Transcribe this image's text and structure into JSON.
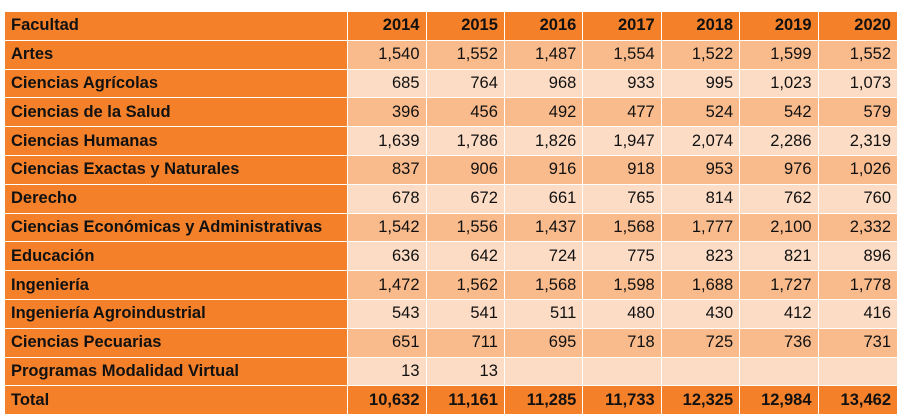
{
  "table": {
    "headers": [
      "Facultad",
      "2014",
      "2015",
      "2016",
      "2017",
      "2018",
      "2019",
      "2020"
    ],
    "rows": [
      {
        "name": "Artes",
        "values": [
          "1,540",
          "1,552",
          "1,487",
          "1,554",
          "1,522",
          "1,599",
          "1,552"
        ]
      },
      {
        "name": "Ciencias Agrícolas",
        "values": [
          "685",
          "764",
          "968",
          "933",
          "995",
          "1,023",
          "1,073"
        ]
      },
      {
        "name": "Ciencias de la Salud",
        "values": [
          "396",
          "456",
          "492",
          "477",
          "524",
          "542",
          "579"
        ]
      },
      {
        "name": "Ciencias Humanas",
        "values": [
          "1,639",
          "1,786",
          "1,826",
          "1,947",
          "2,074",
          "2,286",
          "2,319"
        ]
      },
      {
        "name": "Ciencias Exactas y Naturales",
        "values": [
          "837",
          "906",
          "916",
          "918",
          "953",
          "976",
          "1,026"
        ]
      },
      {
        "name": "Derecho",
        "values": [
          "678",
          "672",
          "661",
          "765",
          "814",
          "762",
          "760"
        ]
      },
      {
        "name": "Ciencias Económicas y Administrativas",
        "values": [
          "1,542",
          "1,556",
          "1,437",
          "1,568",
          "1,777",
          "2,100",
          "2,332"
        ]
      },
      {
        "name": "Educación",
        "values": [
          "636",
          "642",
          "724",
          "775",
          "823",
          "821",
          "896"
        ]
      },
      {
        "name": "Ingeniería",
        "values": [
          "1,472",
          "1,562",
          "1,568",
          "1,598",
          "1,688",
          "1,727",
          "1,778"
        ]
      },
      {
        "name": "Ingeniería Agroindustrial",
        "values": [
          "543",
          "541",
          "511",
          "480",
          "430",
          "412",
          "416"
        ]
      },
      {
        "name": "Ciencias Pecuarias",
        "values": [
          "651",
          "711",
          "695",
          "718",
          "725",
          "736",
          "731"
        ]
      },
      {
        "name": "Programas Modalidad Virtual",
        "values": [
          "13",
          "13",
          "",
          "",
          "",
          "",
          ""
        ]
      }
    ],
    "total": {
      "name": "Total",
      "values": [
        "10,632",
        "11,161",
        "11,285",
        "11,733",
        "12,325",
        "12,984",
        "13,462"
      ]
    }
  },
  "colors": {
    "header_orange": "#f4802a",
    "band_dark": "#f9ba8c",
    "band_light": "#fcdcc5"
  }
}
